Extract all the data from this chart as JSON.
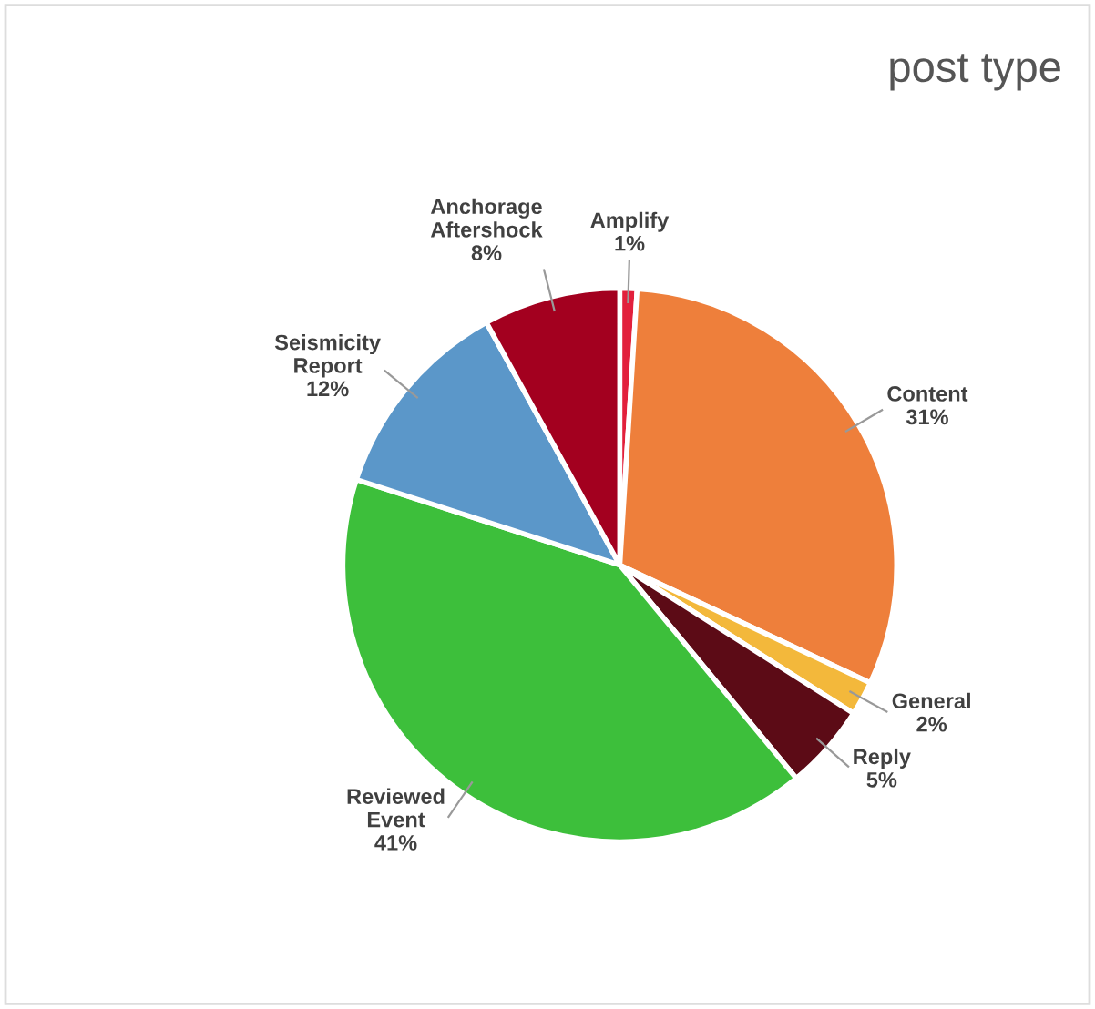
{
  "chart_data": {
    "type": "pie",
    "title": "post type",
    "categories": [
      "Amplify",
      "Content",
      "General",
      "Reply",
      "Reviewed\nEvent",
      "Seismicity\nReport",
      "Anchorage\nAftershock"
    ],
    "values": [
      1,
      31,
      2,
      5,
      41,
      12,
      8
    ],
    "colors": [
      "#e2203c",
      "#ee7f3b",
      "#f3b83b",
      "#5c0b16",
      "#3dbf3b",
      "#5b97c9",
      "#a3001f"
    ],
    "value_labels": [
      "1%",
      "31%",
      "2%",
      "5%",
      "41%",
      "12%",
      "8%"
    ],
    "legend": false
  }
}
